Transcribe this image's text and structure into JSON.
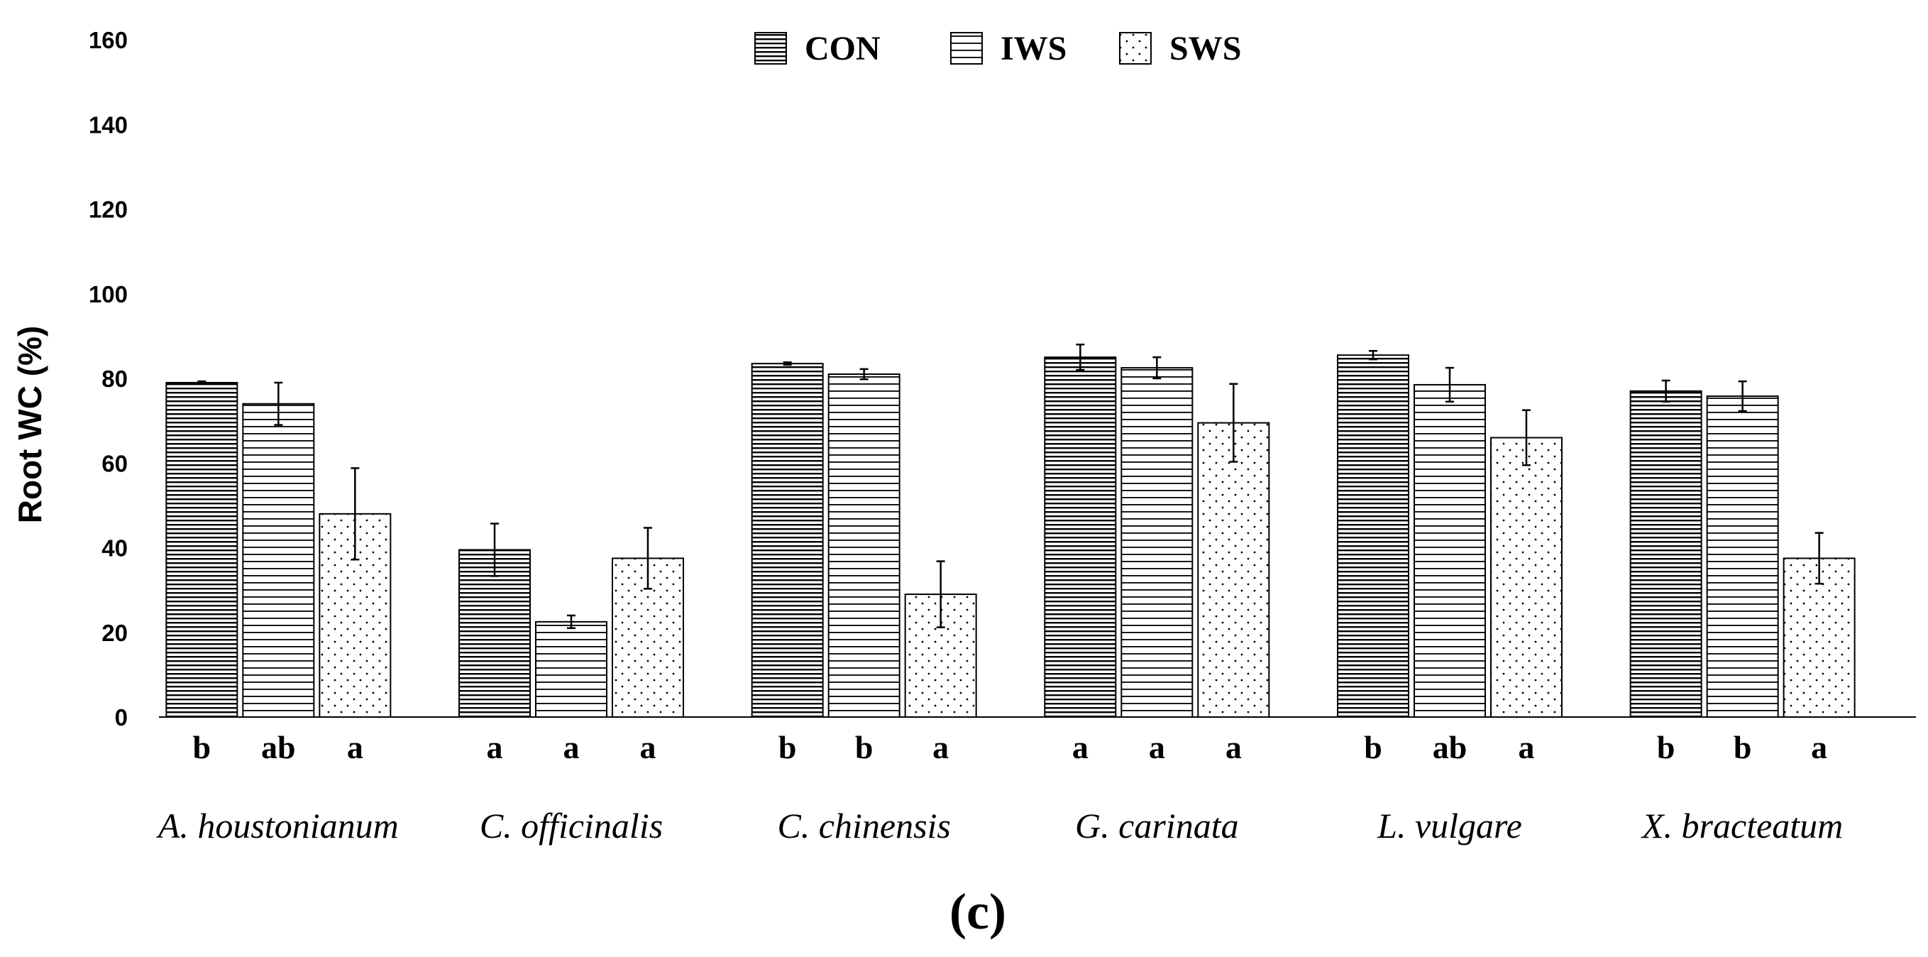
{
  "chart_data": {
    "type": "bar",
    "title": "",
    "xlabel": "",
    "ylabel": "Root WC (%)",
    "ylim": [
      0,
      160
    ],
    "yticks": [
      0,
      20,
      40,
      60,
      80,
      100,
      120,
      140,
      160
    ],
    "grid": false,
    "legend_position": "top-center",
    "panel_label": "(c)",
    "categories": [
      "A. houstonianum",
      "C. officinalis",
      "C. chinensis",
      "G. carinata",
      "L. vulgare",
      "X. bracteatum"
    ],
    "series": [
      {
        "name": "CON",
        "pattern": "dense-horizontal-lines",
        "values": [
          79,
          39.5,
          83.5,
          85,
          85.5,
          77
        ],
        "errors": [
          0.3,
          6.2,
          0.3,
          3,
          1,
          2.5
        ],
        "letters": [
          "b",
          "a",
          "b",
          "a",
          "b",
          "b"
        ]
      },
      {
        "name": "IWS",
        "pattern": "sparse-horizontal-lines",
        "values": [
          74,
          22.5,
          81,
          82.5,
          78.5,
          75.8
        ],
        "errors": [
          5,
          1.5,
          1.2,
          2.5,
          4,
          3.5
        ],
        "letters": [
          "ab",
          "a",
          "b",
          "a",
          "ab",
          "b"
        ]
      },
      {
        "name": "SWS",
        "pattern": "dots",
        "values": [
          48,
          37.5,
          29,
          69.5,
          66,
          37.5
        ],
        "errors": [
          10.8,
          7.2,
          7.8,
          9.2,
          6.5,
          6
        ],
        "letters": [
          "a",
          "a",
          "a",
          "a",
          "a",
          "a"
        ]
      }
    ]
  }
}
